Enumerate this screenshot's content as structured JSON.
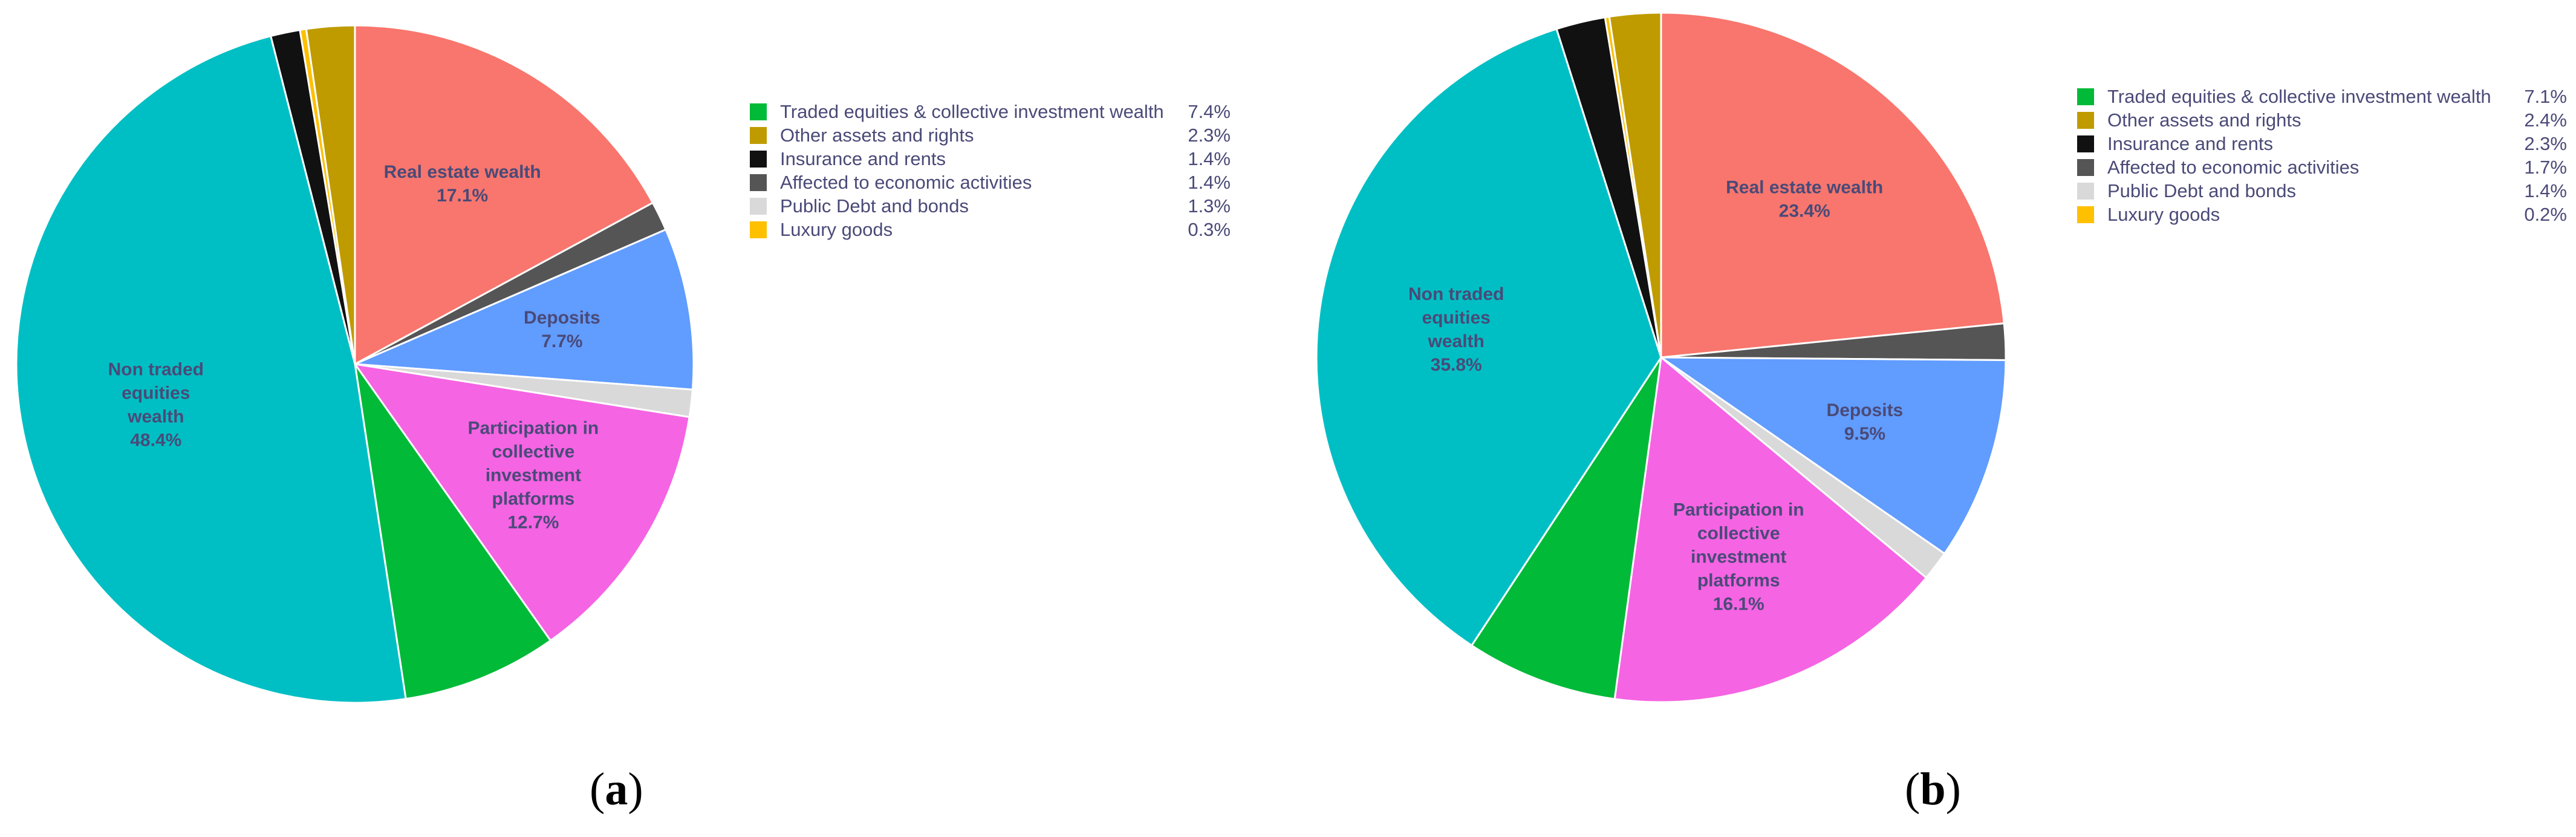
{
  "chart_data": [
    {
      "type": "pie",
      "caption": "a",
      "slices": [
        {
          "label": "Real estate wealth",
          "value": 17.1,
          "value_label": "17.1%",
          "color": "#f8766d"
        },
        {
          "label": "Affected to economic activities",
          "value": 1.4,
          "value_label": "",
          "color": "#555555"
        },
        {
          "label": "Deposits",
          "value": 7.7,
          "value_label": "7.7%",
          "color": "#619cff"
        },
        {
          "label": "Public Debt and bonds",
          "value": 1.3,
          "value_label": "",
          "color": "#d9d9d9"
        },
        {
          "label": "Participation in collective investment platforms",
          "value": 12.7,
          "value_label": "12.7%",
          "color": "#f564e3"
        },
        {
          "label": "Traded equities & collective investment wealth",
          "value": 7.4,
          "value_label": "",
          "color": "#00ba38"
        },
        {
          "label": "Non traded equities wealth",
          "value": 48.4,
          "value_label": "48.4%",
          "color": "#00bfc4"
        },
        {
          "label": "Insurance and rents",
          "value": 1.4,
          "value_label": "",
          "color": "#111111"
        },
        {
          "label": "Luxury goods",
          "value": 0.3,
          "value_label": "",
          "color": "#ffc000"
        },
        {
          "label": "Other assets and rights",
          "value": 2.3,
          "value_label": "",
          "color": "#bf9b00"
        }
      ],
      "slice_text": [
        [
          "Real estate wealth",
          "17.1%"
        ],
        [],
        [
          "Deposits",
          "7.7%"
        ],
        [],
        [
          "Participation in",
          "collective",
          "investment",
          "platforms",
          "12.7%"
        ],
        [],
        [
          "Non traded",
          "equities",
          "wealth",
          "48.4%"
        ],
        [],
        [],
        []
      ],
      "legend": [
        {
          "label": "Traded equities & collective investment wealth",
          "value": "7.4%",
          "color": "#00ba38"
        },
        {
          "label": "Other assets and rights",
          "value": "2.3%",
          "color": "#bf9b00"
        },
        {
          "label": "Insurance and rents",
          "value": "1.4%",
          "color": "#111111"
        },
        {
          "label": "Affected to economic activities",
          "value": "1.4%",
          "color": "#555555"
        },
        {
          "label": "Public Debt and bonds",
          "value": "1.3%",
          "color": "#d9d9d9"
        },
        {
          "label": "Luxury goods",
          "value": "0.3%",
          "color": "#ffc000"
        }
      ],
      "legend_placement": "right"
    },
    {
      "type": "pie",
      "caption": "b",
      "slices": [
        {
          "label": "Real estate wealth",
          "value": 23.4,
          "value_label": "23.4%",
          "color": "#f8766d"
        },
        {
          "label": "Affected to economic activities",
          "value": 1.7,
          "value_label": "",
          "color": "#555555"
        },
        {
          "label": "Deposits",
          "value": 9.5,
          "value_label": "9.5%",
          "color": "#619cff"
        },
        {
          "label": "Public Debt and bonds",
          "value": 1.4,
          "value_label": "",
          "color": "#d9d9d9"
        },
        {
          "label": "Participation in collective investment platforms",
          "value": 16.1,
          "value_label": "16.1%",
          "color": "#f564e3"
        },
        {
          "label": "Traded equities & collective investment wealth",
          "value": 7.1,
          "value_label": "",
          "color": "#00ba38"
        },
        {
          "label": "Non traded equities wealth",
          "value": 35.8,
          "value_label": "35.8%",
          "color": "#00bfc4"
        },
        {
          "label": "Insurance and rents",
          "value": 2.3,
          "value_label": "",
          "color": "#111111"
        },
        {
          "label": "Luxury goods",
          "value": 0.2,
          "value_label": "",
          "color": "#ffc000"
        },
        {
          "label": "Other assets and rights",
          "value": 2.4,
          "value_label": "",
          "color": "#bf9b00"
        }
      ],
      "slice_text": [
        [
          "Real estate wealth",
          "23.4%"
        ],
        [],
        [
          "Deposits",
          "9.5%"
        ],
        [],
        [
          "Participation in",
          "collective",
          "investment",
          "platforms",
          "16.1%"
        ],
        [],
        [
          "Non traded",
          "equities",
          "wealth",
          "35.8%"
        ],
        [],
        [],
        []
      ],
      "legend": [
        {
          "label": "Traded equities & collective investment wealth",
          "value": "7.1%",
          "color": "#00ba38"
        },
        {
          "label": "Other assets and rights",
          "value": "2.4%",
          "color": "#bf9b00"
        },
        {
          "label": "Insurance and rents",
          "value": "2.3%",
          "color": "#111111"
        },
        {
          "label": "Affected to economic activities",
          "value": "1.7%",
          "color": "#555555"
        },
        {
          "label": "Public Debt and bonds",
          "value": "1.4%",
          "color": "#d9d9d9"
        },
        {
          "label": "Luxury goods",
          "value": "0.2%",
          "color": "#ffc000"
        }
      ],
      "legend_placement": "right"
    }
  ]
}
